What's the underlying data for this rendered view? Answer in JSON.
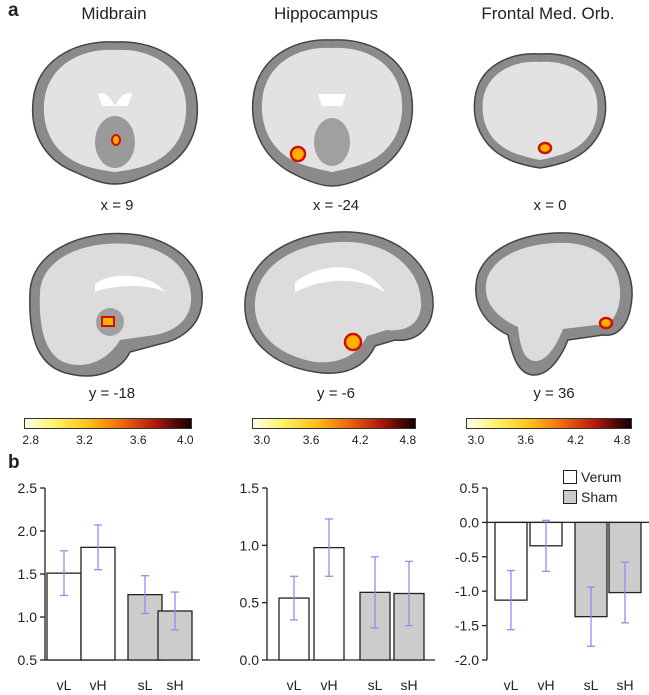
{
  "panel_a": {
    "letter": "a",
    "regions": [
      {
        "title": "Midbrain",
        "coronal_label": "x = 9",
        "sagittal_label": "y = -18",
        "colorbar_ticks": [
          "2.8",
          "3.2",
          "3.6",
          "4.0"
        ]
      },
      {
        "title": "Hippocampus",
        "coronal_label": "x = -24",
        "sagittal_label": "y = -6",
        "colorbar_ticks": [
          "3.0",
          "3.6",
          "4.2",
          "4.8"
        ]
      },
      {
        "title": "Frontal Med. Orb.",
        "coronal_label": "x = 0",
        "sagittal_label": "y = 36",
        "colorbar_ticks": [
          "3.0",
          "3.6",
          "4.2",
          "4.8"
        ]
      }
    ]
  },
  "panel_b": {
    "letter": "b",
    "legend": [
      {
        "label": "Verum",
        "color": "#ffffff"
      },
      {
        "label": "Sham",
        "color": "#cccccc"
      }
    ]
  },
  "colors": {
    "verum": "#ffffff",
    "sham": "#cccccc",
    "error_bar": "#8f8ff0",
    "axis": "#222222"
  },
  "chart_data": [
    {
      "type": "bar",
      "categories": [
        "vL",
        "vH",
        "sL",
        "sH"
      ],
      "values": [
        1.51,
        1.81,
        1.26,
        1.07
      ],
      "errors": [
        0.26,
        0.26,
        0.22,
        0.22
      ],
      "groups": [
        "Verum",
        "Verum",
        "Sham",
        "Sham"
      ],
      "ylim": [
        0.5,
        2.5
      ],
      "yticks": [
        "0.5",
        "1.0",
        "1.5",
        "2.0",
        "2.5"
      ],
      "title": "",
      "xlabel": "",
      "ylabel": ""
    },
    {
      "type": "bar",
      "categories": [
        "vL",
        "vH",
        "sL",
        "sH"
      ],
      "values": [
        0.54,
        0.98,
        0.59,
        0.58
      ],
      "errors": [
        0.19,
        0.25,
        0.31,
        0.28
      ],
      "groups": [
        "Verum",
        "Verum",
        "Sham",
        "Sham"
      ],
      "ylim": [
        0.0,
        1.5
      ],
      "yticks": [
        "0.0",
        "0.5",
        "1.0",
        "1.5"
      ],
      "title": "",
      "xlabel": "",
      "ylabel": ""
    },
    {
      "type": "bar",
      "categories": [
        "vL",
        "vH",
        "sL",
        "sH"
      ],
      "values": [
        -1.13,
        -0.34,
        -1.37,
        -1.02
      ],
      "errors": [
        0.43,
        0.37,
        0.43,
        0.44
      ],
      "groups": [
        "Verum",
        "Verum",
        "Sham",
        "Sham"
      ],
      "ylim": [
        -2.0,
        0.5
      ],
      "yticks": [
        "0.5",
        "0.0",
        "-0.5",
        "-1.0",
        "-1.5",
        "-2.0"
      ],
      "title": "",
      "xlabel": "",
      "ylabel": ""
    }
  ]
}
